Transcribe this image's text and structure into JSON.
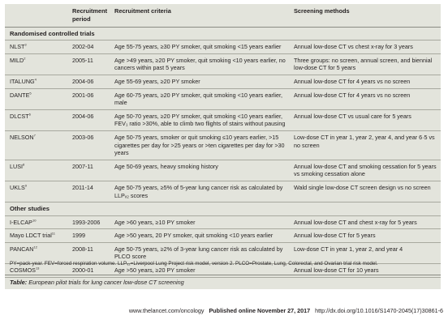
{
  "table": {
    "headers": [
      "",
      "Recruitment\nperiod",
      "Recruitment criteria",
      "Screening methods"
    ],
    "sections": [
      {
        "title": "Randomised controlled trials",
        "rows": [
          {
            "study": "NLST",
            "ref": "3",
            "period": "2002-04",
            "criteria": "Age 55-75 years, ≥30 PY smoker, quit smoking <15 years earlier",
            "methods": "Annual low-dose CT vs chest x-ray for 3 years"
          },
          {
            "study": "MILD",
            "ref": "2",
            "period": "2005-11",
            "criteria": "Age >49 years, ≥20 PY smoker, quit smoking <10 years earlier, no cancers within past 5 years",
            "methods": "Three groups: no screen, annual screen, and biennial low-dose CT for 5 years"
          },
          {
            "study": "ITALUNG",
            "ref": "4",
            "period": "2004-06",
            "criteria": "Age 55-69 years, ≥20 PY smoker",
            "methods": "Annual low-dose CT for 4 years vs no screen"
          },
          {
            "study": "DANTE",
            "ref": "5",
            "period": "2001-06",
            "criteria": "Age 60-75 years, ≥20 PY smoker, quit smoking <10 years earlier, male",
            "methods": "Annual low-dose CT for 4 years vs no screen"
          },
          {
            "study": "DLCST",
            "ref": "6",
            "period": "2004-06",
            "criteria": "Age 50-70 years, ≥20 PY smoker, quit smoking <10 years earlier, FEV₁ ratio >30%, able to climb two flights of stairs without pausing",
            "methods": "Annual low-dose CT vs usual care for 5 years"
          },
          {
            "study": "NELSON",
            "ref": "7",
            "period": "2003-06",
            "criteria": "Age 50-75 years, smoker or quit smoking ≤10 years earlier, >15 cigarettes per day for >25 years or >ten cigarettes per day for >30 years",
            "methods": "Low-dose CT in year 1, year 2, year 4, and year 6·5 vs no screen"
          },
          {
            "study": "LUSI",
            "ref": "8",
            "period": "2007-11",
            "criteria": "Age 50-69 years, heavy smoking history",
            "methods": "Annual low-dose CT and smoking cessation for 5 years vs smoking cessation alone"
          },
          {
            "study": "UKLS",
            "ref": "9",
            "period": "2011-14",
            "criteria": "Age 50-75 years, ≥5% of 5-year lung cancer risk as calculated by LLPᵥ₂ scores",
            "methods": "Wald single low-dose CT screen design vs no screen"
          }
        ]
      },
      {
        "title": "Other studies",
        "rows": [
          {
            "study": "I-ELCAP",
            "ref": "10",
            "period": "1993-2006",
            "criteria": "Age >60 years, ≥10 PY smoker",
            "methods": "Annual low-dose CT and chest x-ray for 5 years"
          },
          {
            "study": "Mayo LDCT trial",
            "ref": "11",
            "period": "1999",
            "criteria": "Age >50 years, 20 PY smoker, quit smoking <10 years earlier",
            "methods": "Annual low-dose CT for 5 years"
          },
          {
            "study": "PANCAN",
            "ref": "12",
            "period": "2008-11",
            "criteria": "Age 50-75 years, ≥2% of 3-year lung cancer risk as calculated by PLCO score",
            "methods": "Low-dose CT in year 1, year 2, and year 4"
          },
          {
            "study": "COSMOS",
            "ref": "13",
            "period": "2000-01",
            "criteria": "Age >50 years, ≥20 PY smoker",
            "methods": "Annual low-dose CT for 10 years"
          }
        ]
      }
    ],
    "footnote": "PY=pack-year. FEV=forced respiration volume. LLPᵥ₂=Liverpool Lung Project risk model, version 2. PLCO=Prostate, Lung, Colorectal, and Ovarian trial risk model.",
    "caption_label": "Table:",
    "caption_text": "European pilot trials for lung cancer low-dose CT screening"
  },
  "publication": {
    "site": "www.thelancet.com/oncology",
    "published": "Published online November 27, 2017",
    "doi": "http://dx.doi.org/10.1016/S1470-2045(17)30861-6"
  }
}
